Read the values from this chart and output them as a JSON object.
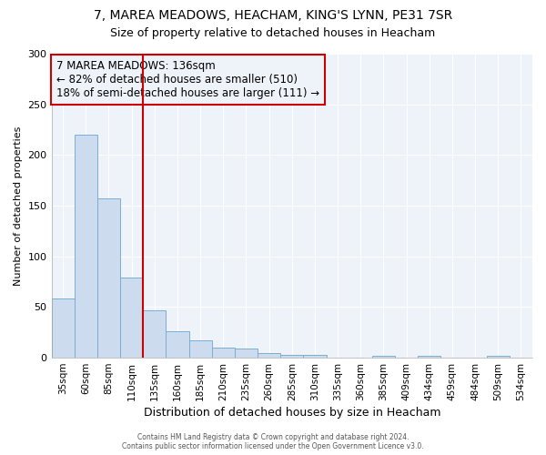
{
  "title": "7, MAREA MEADOWS, HEACHAM, KING'S LYNN, PE31 7SR",
  "subtitle": "Size of property relative to detached houses in Heacham",
  "xlabel": "Distribution of detached houses by size in Heacham",
  "ylabel": "Number of detached properties",
  "bin_labels": [
    "35sqm",
    "60sqm",
    "85sqm",
    "110sqm",
    "135sqm",
    "160sqm",
    "185sqm",
    "210sqm",
    "235sqm",
    "260sqm",
    "285sqm",
    "310sqm",
    "335sqm",
    "360sqm",
    "385sqm",
    "409sqm",
    "434sqm",
    "459sqm",
    "484sqm",
    "509sqm",
    "534sqm"
  ],
  "bar_values": [
    58,
    220,
    157,
    79,
    47,
    26,
    17,
    10,
    9,
    5,
    3,
    3,
    0,
    0,
    2,
    0,
    2,
    0,
    0,
    2,
    0
  ],
  "bar_color": "#ccdcee",
  "bar_edge_color": "#7aaed0",
  "property_line_x": 3.5,
  "property_line_color": "#cc0000",
  "annotation_text": "7 MAREA MEADOWS: 136sqm\n← 82% of detached houses are smaller (510)\n18% of semi-detached houses are larger (111) →",
  "annotation_box_color": "#cc0000",
  "ylim": [
    0,
    300
  ],
  "yticks": [
    0,
    50,
    100,
    150,
    200,
    250,
    300
  ],
  "footer_line1": "Contains HM Land Registry data © Crown copyright and database right 2024.",
  "footer_line2": "Contains public sector information licensed under the Open Government Licence v3.0.",
  "bg_color": "#ffffff",
  "plot_bg_color": "#eef3fa",
  "grid_color": "#ffffff",
  "title_fontsize": 10,
  "subtitle_fontsize": 9,
  "annotation_fontsize": 8.5,
  "xlabel_fontsize": 9,
  "ylabel_fontsize": 8
}
